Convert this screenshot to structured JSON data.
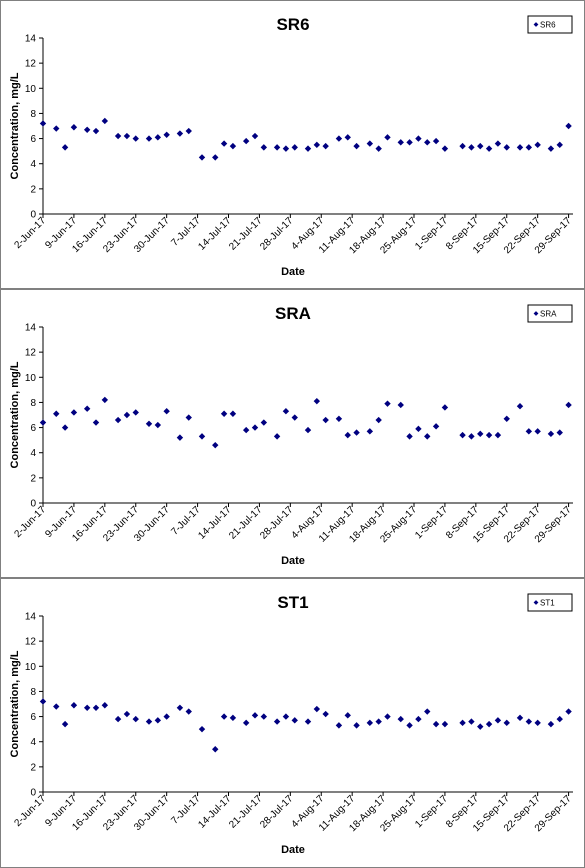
{
  "chart_data": [
    {
      "type": "scatter",
      "title": "SR6",
      "xlabel": "Date",
      "ylabel": "Concentration, mg/L",
      "ylim": [
        0,
        14
      ],
      "yticks": [
        0,
        2,
        4,
        6,
        8,
        10,
        12,
        14
      ],
      "xlim": [
        "2-Jun-17",
        "30-Sep-17"
      ],
      "xticks": [
        "2-Jun-17",
        "9-Jun-17",
        "16-Jun-17",
        "23-Jun-17",
        "30-Jun-17",
        "7-Jul-17",
        "14-Jul-17",
        "21-Jul-17",
        "28-Jul-17",
        "4-Aug-17",
        "11-Aug-17",
        "18-Aug-17",
        "25-Aug-17",
        "1-Sep-17",
        "8-Sep-17",
        "15-Sep-17",
        "22-Sep-17",
        "29-Sep-17"
      ],
      "legend": "top-right",
      "color": "#000080",
      "series": [
        {
          "name": "SR6",
          "x": [
            "2-Jun-17",
            "5-Jun-17",
            "7-Jun-17",
            "9-Jun-17",
            "12-Jun-17",
            "14-Jun-17",
            "16-Jun-17",
            "19-Jun-17",
            "21-Jun-17",
            "23-Jun-17",
            "26-Jun-17",
            "28-Jun-17",
            "30-Jun-17",
            "3-Jul-17",
            "5-Jul-17",
            "8-Jul-17",
            "11-Jul-17",
            "13-Jul-17",
            "15-Jul-17",
            "18-Jul-17",
            "20-Jul-17",
            "22-Jul-17",
            "25-Jul-17",
            "27-Jul-17",
            "29-Jul-17",
            "1-Aug-17",
            "3-Aug-17",
            "5-Aug-17",
            "8-Aug-17",
            "10-Aug-17",
            "12-Aug-17",
            "15-Aug-17",
            "17-Aug-17",
            "19-Aug-17",
            "22-Aug-17",
            "24-Aug-17",
            "26-Aug-17",
            "28-Aug-17",
            "30-Aug-17",
            "1-Sep-17",
            "5-Sep-17",
            "7-Sep-17",
            "9-Sep-17",
            "11-Sep-17",
            "13-Sep-17",
            "15-Sep-17",
            "18-Sep-17",
            "20-Sep-17",
            "22-Sep-17",
            "25-Sep-17",
            "27-Sep-17",
            "29-Sep-17"
          ],
          "y": [
            7.2,
            6.8,
            5.3,
            6.9,
            6.7,
            6.6,
            7.4,
            6.2,
            6.2,
            6.0,
            6.0,
            6.1,
            6.3,
            6.4,
            6.6,
            4.5,
            4.5,
            5.6,
            5.4,
            5.8,
            6.2,
            5.3,
            5.3,
            5.2,
            5.3,
            5.2,
            5.5,
            5.4,
            6.0,
            6.1,
            5.4,
            5.6,
            5.2,
            6.1,
            5.7,
            5.7,
            6.0,
            5.7,
            5.8,
            5.2,
            5.4,
            5.3,
            5.4,
            5.2,
            5.6,
            5.3,
            5.3,
            5.3,
            5.5,
            5.2,
            5.5,
            7.0
          ]
        }
      ]
    },
    {
      "type": "scatter",
      "title": "SRA",
      "xlabel": "Date",
      "ylabel": "Concentration, mg/L",
      "ylim": [
        0,
        14
      ],
      "yticks": [
        0,
        2,
        4,
        6,
        8,
        10,
        12,
        14
      ],
      "xlim": [
        "2-Jun-17",
        "30-Sep-17"
      ],
      "xticks": [
        "2-Jun-17",
        "9-Jun-17",
        "16-Jun-17",
        "23-Jun-17",
        "30-Jun-17",
        "7-Jul-17",
        "14-Jul-17",
        "21-Jul-17",
        "28-Jul-17",
        "4-Aug-17",
        "11-Aug-17",
        "18-Aug-17",
        "25-Aug-17",
        "1-Sep-17",
        "8-Sep-17",
        "15-Sep-17",
        "22-Sep-17",
        "29-Sep-17"
      ],
      "legend": "top-right",
      "color": "#000080",
      "series": [
        {
          "name": "SRA",
          "x": [
            "2-Jun-17",
            "5-Jun-17",
            "7-Jun-17",
            "9-Jun-17",
            "12-Jun-17",
            "14-Jun-17",
            "16-Jun-17",
            "19-Jun-17",
            "21-Jun-17",
            "23-Jun-17",
            "26-Jun-17",
            "28-Jun-17",
            "30-Jun-17",
            "3-Jul-17",
            "5-Jul-17",
            "8-Jul-17",
            "11-Jul-17",
            "13-Jul-17",
            "15-Jul-17",
            "18-Jul-17",
            "20-Jul-17",
            "22-Jul-17",
            "25-Jul-17",
            "27-Jul-17",
            "29-Jul-17",
            "1-Aug-17",
            "3-Aug-17",
            "5-Aug-17",
            "8-Aug-17",
            "10-Aug-17",
            "12-Aug-17",
            "15-Aug-17",
            "17-Aug-17",
            "19-Aug-17",
            "22-Aug-17",
            "24-Aug-17",
            "26-Aug-17",
            "28-Aug-17",
            "30-Aug-17",
            "1-Sep-17",
            "5-Sep-17",
            "7-Sep-17",
            "9-Sep-17",
            "11-Sep-17",
            "13-Sep-17",
            "15-Sep-17",
            "18-Sep-17",
            "20-Sep-17",
            "22-Sep-17",
            "25-Sep-17",
            "27-Sep-17",
            "29-Sep-17"
          ],
          "y": [
            6.4,
            7.1,
            6.0,
            7.2,
            7.5,
            6.4,
            8.2,
            6.6,
            7.0,
            7.2,
            6.3,
            6.2,
            7.3,
            5.2,
            6.8,
            5.3,
            4.6,
            7.1,
            7.1,
            5.8,
            6.0,
            6.4,
            5.3,
            7.3,
            6.8,
            5.8,
            8.1,
            6.6,
            6.7,
            5.4,
            5.6,
            5.7,
            6.6,
            7.9,
            7.8,
            5.3,
            5.9,
            5.3,
            6.1,
            7.6,
            5.4,
            5.3,
            5.5,
            5.4,
            5.4,
            6.7,
            7.7,
            5.7,
            5.7,
            5.5,
            5.6,
            7.8
          ]
        }
      ]
    },
    {
      "type": "scatter",
      "title": "ST1",
      "xlabel": "Date",
      "ylabel": "Concentration, mg/L",
      "ylim": [
        0,
        14
      ],
      "yticks": [
        0,
        2,
        4,
        6,
        8,
        10,
        12,
        14
      ],
      "xlim": [
        "2-Jun-17",
        "30-Sep-17"
      ],
      "xticks": [
        "2-Jun-17",
        "9-Jun-17",
        "16-Jun-17",
        "23-Jun-17",
        "30-Jun-17",
        "7-Jul-17",
        "14-Jul-17",
        "21-Jul-17",
        "28-Jul-17",
        "4-Aug-17",
        "11-Aug-17",
        "18-Aug-17",
        "25-Aug-17",
        "1-Sep-17",
        "8-Sep-17",
        "15-Sep-17",
        "22-Sep-17",
        "29-Sep-17"
      ],
      "legend": "top-right",
      "color": "#000080",
      "series": [
        {
          "name": "ST1",
          "x": [
            "2-Jun-17",
            "5-Jun-17",
            "7-Jun-17",
            "9-Jun-17",
            "12-Jun-17",
            "14-Jun-17",
            "16-Jun-17",
            "19-Jun-17",
            "21-Jun-17",
            "23-Jun-17",
            "26-Jun-17",
            "28-Jun-17",
            "30-Jun-17",
            "3-Jul-17",
            "5-Jul-17",
            "8-Jul-17",
            "11-Jul-17",
            "13-Jul-17",
            "15-Jul-17",
            "18-Jul-17",
            "20-Jul-17",
            "22-Jul-17",
            "25-Jul-17",
            "27-Jul-17",
            "29-Jul-17",
            "1-Aug-17",
            "3-Aug-17",
            "5-Aug-17",
            "8-Aug-17",
            "10-Aug-17",
            "12-Aug-17",
            "15-Aug-17",
            "17-Aug-17",
            "19-Aug-17",
            "22-Aug-17",
            "24-Aug-17",
            "26-Aug-17",
            "28-Aug-17",
            "30-Aug-17",
            "1-Sep-17",
            "5-Sep-17",
            "7-Sep-17",
            "9-Sep-17",
            "11-Sep-17",
            "13-Sep-17",
            "15-Sep-17",
            "18-Sep-17",
            "20-Sep-17",
            "22-Sep-17",
            "25-Sep-17",
            "27-Sep-17",
            "29-Sep-17"
          ],
          "y": [
            7.2,
            6.8,
            5.4,
            6.9,
            6.7,
            6.7,
            6.9,
            5.8,
            6.2,
            5.8,
            5.6,
            5.7,
            6.0,
            6.7,
            6.4,
            5.0,
            3.4,
            6.0,
            5.9,
            5.5,
            6.1,
            6.0,
            5.6,
            6.0,
            5.7,
            5.6,
            6.6,
            6.2,
            5.3,
            6.1,
            5.3,
            5.5,
            5.6,
            6.0,
            5.8,
            5.3,
            5.8,
            6.4,
            5.4,
            5.4,
            5.5,
            5.6,
            5.2,
            5.4,
            5.7,
            5.5,
            5.9,
            5.6,
            5.5,
            5.4,
            5.8,
            6.4
          ]
        }
      ]
    }
  ]
}
